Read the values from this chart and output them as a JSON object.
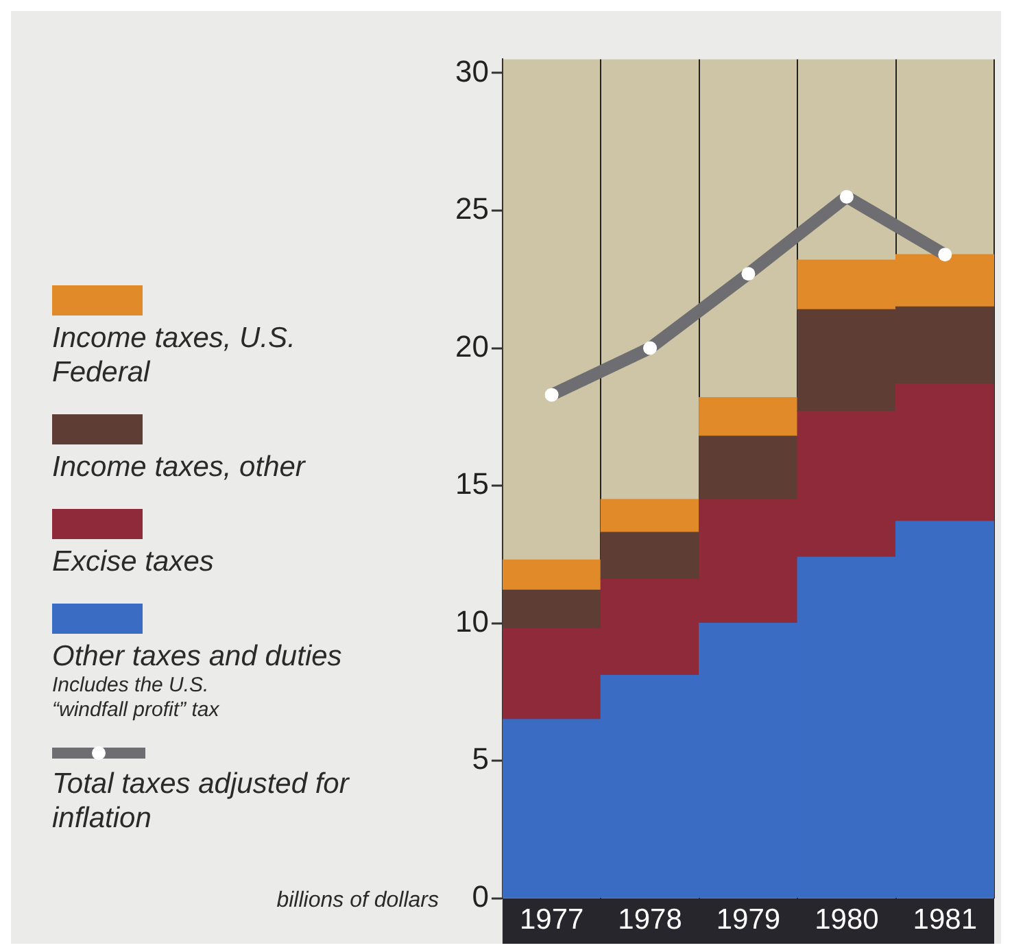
{
  "chart_data": {
    "type": "bar",
    "stacked": true,
    "ylabel": "billions of dollars",
    "categories": [
      "1977",
      "1978",
      "1979",
      "1980",
      "1981"
    ],
    "series": [
      {
        "name": "Other taxes and duties",
        "color": "#3a6cc4",
        "values": [
          6.5,
          8.1,
          10.0,
          12.4,
          13.7
        ]
      },
      {
        "name": "Excise taxes",
        "color": "#8e2a3a",
        "values": [
          3.3,
          3.5,
          4.5,
          5.3,
          5.0
        ]
      },
      {
        "name": "Income taxes, other",
        "color": "#5e3d34",
        "values": [
          1.4,
          1.7,
          2.3,
          3.7,
          2.8
        ]
      },
      {
        "name": "Income taxes, U.S. Federal",
        "color": "#e08a2a",
        "values": [
          1.1,
          1.2,
          1.4,
          1.8,
          1.9
        ]
      },
      {
        "name": "Total taxes adjusted for inflation",
        "type": "line",
        "color": "#6e6e72",
        "values": [
          18.3,
          20.0,
          22.7,
          25.5,
          23.4
        ]
      }
    ],
    "annotations": [
      "Includes the U.S. “windfall profit” tax"
    ],
    "ylim": [
      0,
      30.5
    ],
    "yticks": [
      0,
      5,
      10,
      15,
      20,
      25,
      30
    ],
    "grid": "x",
    "legend": "left",
    "marker": "circle"
  }
}
